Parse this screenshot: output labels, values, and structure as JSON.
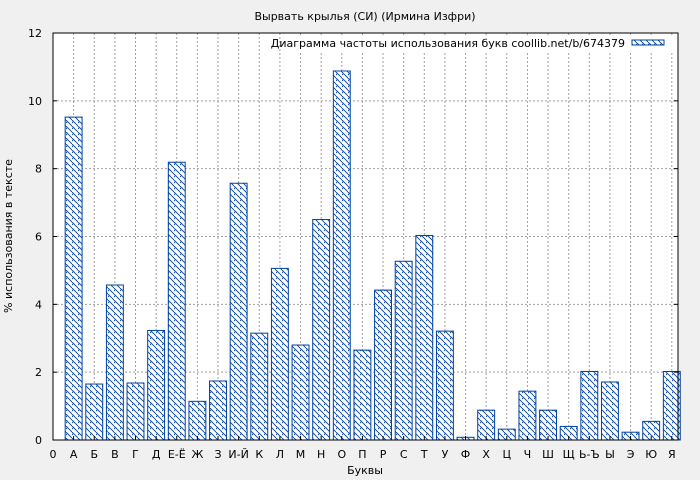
{
  "chart_data": {
    "type": "bar",
    "title": "Вырвать крылья (СИ) (Ирмина Изфри)",
    "xlabel": "Буквы",
    "ylabel": "% использования в тексте",
    "legend_label": "Диаграмма частоты использования букв coollib.net/b/674379",
    "legend_position": "top-right",
    "grid": true,
    "ylim": [
      0,
      12
    ],
    "yticks": [
      "0",
      "2",
      "4",
      "6",
      "8",
      "10",
      "12"
    ],
    "x_origin_label": "0",
    "categories": [
      "А",
      "Б",
      "В",
      "Г",
      "Д",
      "Е-Ё",
      "Ж",
      "З",
      "И-Й",
      "К",
      "Л",
      "М",
      "Н",
      "О",
      "П",
      "Р",
      "С",
      "Т",
      "У",
      "Ф",
      "Х",
      "Ц",
      "Ч",
      "Ш",
      "Щ",
      "Ь-Ъ",
      "Ы",
      "Э",
      "Ю",
      "Я"
    ],
    "values": [
      9.52,
      1.65,
      4.57,
      1.68,
      3.23,
      8.19,
      1.14,
      1.74,
      7.57,
      3.15,
      5.06,
      2.8,
      6.5,
      10.88,
      2.65,
      4.42,
      5.27,
      6.03,
      3.21,
      0.08,
      0.88,
      0.32,
      1.44,
      0.88,
      0.4,
      2.02,
      1.71,
      0.23,
      0.55,
      2.02
    ],
    "colors": {
      "bar_stroke": "#0040a0",
      "hatch": "#0040a0",
      "background": "#f0f0f0",
      "plot_background": "#ffffff",
      "grid": "#a0a0a0"
    }
  }
}
